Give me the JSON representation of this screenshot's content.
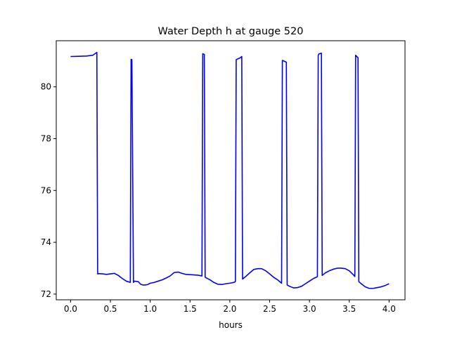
{
  "chart_data": {
    "type": "line",
    "title": "Water Depth h at gauge 520",
    "xlabel": "hours",
    "ylabel": "",
    "xlim": [
      -0.18,
      4.2
    ],
    "ylim": [
      71.78,
      81.78
    ],
    "xticks": [
      0.0,
      0.5,
      1.0,
      1.5,
      2.0,
      2.5,
      3.0,
      3.5,
      4.0
    ],
    "xtick_labels": [
      "0.0",
      "0.5",
      "1.0",
      "1.5",
      "2.0",
      "2.5",
      "3.0",
      "3.5",
      "4.0"
    ],
    "yticks": [
      72,
      74,
      76,
      78,
      80
    ],
    "ytick_labels": [
      "72",
      "74",
      "76",
      "78",
      "80"
    ],
    "grid": false,
    "series": [
      {
        "color": "#0000ff",
        "x": [
          0.0,
          0.1,
          0.2,
          0.28,
          0.33,
          0.34,
          0.35,
          0.4,
          0.45,
          0.5,
          0.55,
          0.6,
          0.65,
          0.7,
          0.75,
          0.76,
          0.77,
          0.79,
          0.8,
          0.85,
          0.88,
          0.91,
          0.94,
          0.97,
          1.0,
          1.05,
          1.1,
          1.15,
          1.2,
          1.25,
          1.3,
          1.35,
          1.4,
          1.45,
          1.5,
          1.55,
          1.6,
          1.65,
          1.66,
          1.68,
          1.69,
          1.75,
          1.8,
          1.85,
          1.9,
          1.95,
          2.0,
          2.05,
          2.07,
          2.08,
          2.13,
          2.15,
          2.16,
          2.2,
          2.25,
          2.3,
          2.35,
          2.4,
          2.45,
          2.5,
          2.55,
          2.6,
          2.65,
          2.66,
          2.67,
          2.71,
          2.72,
          2.75,
          2.8,
          2.85,
          2.9,
          2.95,
          3.0,
          3.05,
          3.1,
          3.11,
          3.12,
          3.15,
          3.16,
          3.2,
          3.25,
          3.3,
          3.35,
          3.4,
          3.45,
          3.5,
          3.55,
          3.57,
          3.58,
          3.61,
          3.62,
          3.65,
          3.7,
          3.75,
          3.8,
          3.85,
          3.9,
          3.95,
          4.0
        ],
        "y": [
          81.17,
          81.18,
          81.19,
          81.22,
          81.33,
          72.78,
          72.79,
          72.78,
          72.76,
          72.78,
          72.8,
          72.72,
          72.6,
          72.5,
          72.45,
          81.06,
          81.05,
          72.45,
          72.5,
          72.48,
          72.38,
          72.35,
          72.35,
          72.37,
          72.42,
          72.45,
          72.5,
          72.55,
          72.62,
          72.7,
          72.83,
          72.85,
          72.8,
          72.76,
          72.75,
          72.74,
          72.73,
          72.7,
          81.28,
          81.25,
          72.65,
          72.55,
          72.45,
          72.38,
          72.37,
          72.4,
          72.42,
          72.45,
          72.48,
          81.05,
          81.12,
          81.17,
          72.58,
          72.68,
          72.82,
          72.95,
          72.98,
          72.98,
          72.9,
          72.78,
          72.65,
          72.55,
          72.42,
          81.02,
          81.01,
          80.95,
          72.35,
          72.3,
          72.24,
          72.25,
          72.3,
          72.4,
          72.5,
          72.6,
          72.67,
          81.22,
          81.27,
          81.3,
          72.72,
          72.82,
          72.9,
          72.96,
          73.0,
          73.0,
          72.98,
          72.9,
          72.75,
          72.68,
          81.22,
          81.12,
          72.48,
          72.4,
          72.28,
          72.22,
          72.22,
          72.25,
          72.28,
          72.33,
          72.4
        ]
      }
    ]
  }
}
